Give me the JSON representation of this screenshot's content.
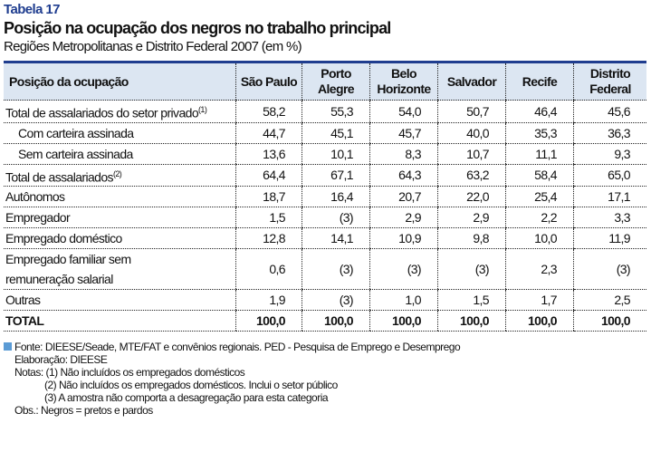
{
  "table_number": "Tabela 17",
  "title": "Posição na ocupação dos negros no trabalho principal",
  "subtitle": "Regiões Metropolitanas e Distrito Federal 2007 (em %)",
  "columns": [
    "Posição da ocupação",
    "São Paulo",
    "Porto Alegre",
    "Belo Horizonte",
    "Salvador",
    "Recife",
    "Distrito Federal"
  ],
  "rows": [
    {
      "label": "Total de assalariados do setor privado",
      "note": "(1)",
      "values": [
        "58,2",
        "55,3",
        "54,0",
        "50,7",
        "46,4",
        "45,6"
      ]
    },
    {
      "label": "Com carteira assinada",
      "note": "",
      "values": [
        "44,7",
        "45,1",
        "45,7",
        "40,0",
        "35,3",
        "36,3"
      ]
    },
    {
      "label": "Sem carteira assinada",
      "note": "",
      "values": [
        "13,6",
        "10,1",
        "8,3",
        "10,7",
        "11,1",
        "9,3"
      ]
    },
    {
      "label": "Total de assalariados",
      "note": "(2)",
      "values": [
        "64,4",
        "67,1",
        "64,3",
        "63,2",
        "58,4",
        "65,0"
      ]
    },
    {
      "label": "Autônomos",
      "note": "",
      "values": [
        "18,7",
        "16,4",
        "20,7",
        "22,0",
        "25,4",
        "17,1"
      ]
    },
    {
      "label": "Empregador",
      "note": "",
      "values": [
        "1,5",
        "(3)",
        "2,9",
        "2,9",
        "2,2",
        "3,3"
      ]
    },
    {
      "label": "Empregado doméstico",
      "note": "",
      "values": [
        "12,8",
        "14,1",
        "10,9",
        "9,8",
        "10,0",
        "11,9"
      ]
    },
    {
      "label": "Empregado familiar sem remuneração salarial",
      "note": "",
      "values": [
        "0,6",
        "(3)",
        "(3)",
        "(3)",
        "2,3",
        "(3)"
      ]
    },
    {
      "label": "Outras",
      "note": "",
      "values": [
        "1,9",
        "(3)",
        "1,0",
        "1,5",
        "1,7",
        "2,5"
      ]
    },
    {
      "label": "TOTAL",
      "note": "",
      "values": [
        "100,0",
        "100,0",
        "100,0",
        "100,0",
        "100,0",
        "100,0"
      ]
    }
  ],
  "footer": {
    "source": "Fonte: DIEESE/Seade, MTE/FAT e convênios regionais. PED - Pesquisa de Emprego e Desemprego",
    "elaboration": "Elaboração: DIEESE",
    "note1": "Notas: (1) Não incluídos os empregados domésticos",
    "note2": "(2) Não incluídos os empregados domésticos. Inclui o setor público",
    "note3": "(3) A amostra não comporta a desagregação para esta categoria",
    "obs": "Obs.: Negros = pretos e pardos"
  }
}
